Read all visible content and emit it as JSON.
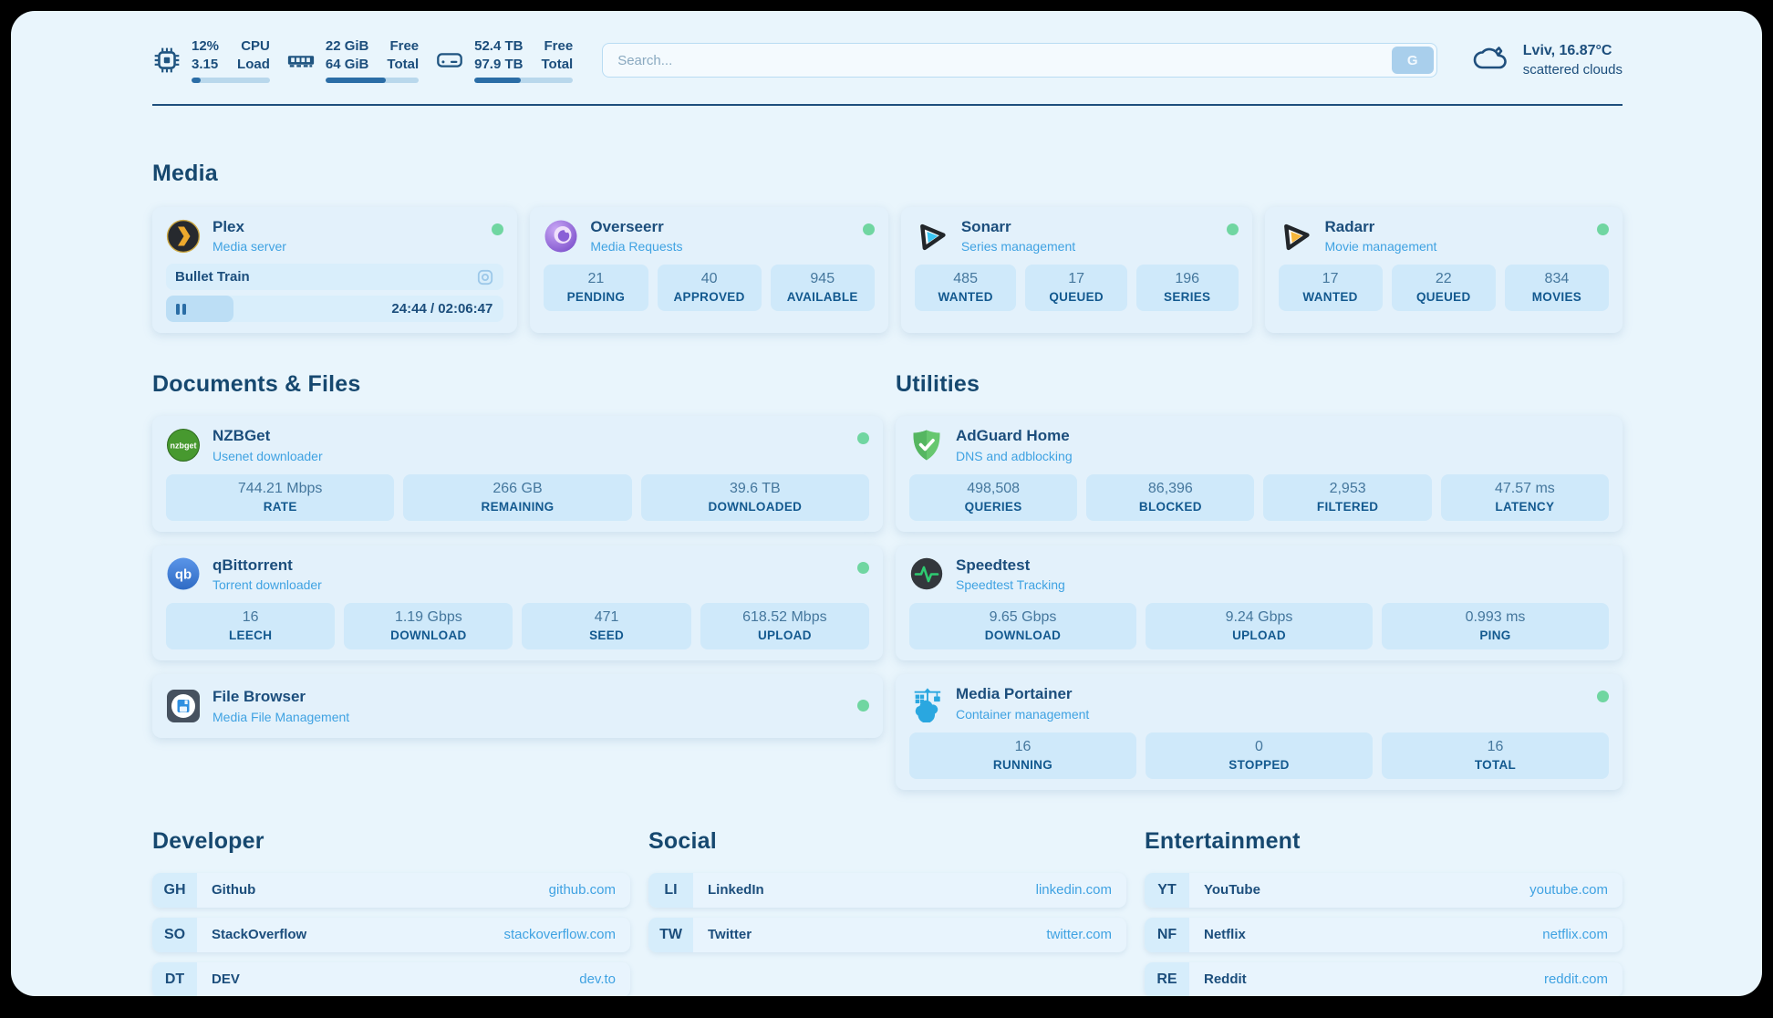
{
  "topbar": {
    "cpu": {
      "value_top": "12%",
      "value_bottom": "3.15",
      "label_top": "CPU",
      "label_bottom": "Load",
      "progress_pct": 12
    },
    "memory": {
      "value_top": "22 GiB",
      "value_bottom": "64 GiB",
      "label_top": "Free",
      "label_bottom": "Total",
      "progress_pct": 65
    },
    "disk": {
      "value_top": "52.4 TB",
      "value_bottom": "97.9 TB",
      "label_top": "Free",
      "label_bottom": "Total",
      "progress_pct": 47
    },
    "search": {
      "placeholder": "Search...",
      "button_label": "G"
    },
    "weather": {
      "location": "Lviv, 16.87°C",
      "condition": "scattered clouds"
    }
  },
  "sections": {
    "media": {
      "title": "Media"
    },
    "documents": {
      "title": "Documents & Files"
    },
    "utilities": {
      "title": "Utilities"
    },
    "developer": {
      "title": "Developer"
    },
    "social": {
      "title": "Social"
    },
    "entertainment": {
      "title": "Entertainment"
    }
  },
  "apps": {
    "plex": {
      "name": "Plex",
      "desc": "Media server",
      "status": "online",
      "now_playing": {
        "title": "Bullet Train",
        "time": "24:44 / 02:06:47",
        "progress_pct": 20
      }
    },
    "overseerr": {
      "name": "Overseerr",
      "desc": "Media Requests",
      "status": "online",
      "stats": [
        {
          "value": "21",
          "label": "PENDING"
        },
        {
          "value": "40",
          "label": "APPROVED"
        },
        {
          "value": "945",
          "label": "AVAILABLE"
        }
      ]
    },
    "sonarr": {
      "name": "Sonarr",
      "desc": "Series management",
      "status": "online",
      "stats": [
        {
          "value": "485",
          "label": "WANTED"
        },
        {
          "value": "17",
          "label": "QUEUED"
        },
        {
          "value": "196",
          "label": "SERIES"
        }
      ]
    },
    "radarr": {
      "name": "Radarr",
      "desc": "Movie management",
      "status": "online",
      "stats": [
        {
          "value": "17",
          "label": "WANTED"
        },
        {
          "value": "22",
          "label": "QUEUED"
        },
        {
          "value": "834",
          "label": "MOVIES"
        }
      ]
    },
    "nzbget": {
      "name": "NZBGet",
      "desc": "Usenet downloader",
      "status": "online",
      "stats": [
        {
          "value": "744.21 Mbps",
          "label": "RATE"
        },
        {
          "value": "266 GB",
          "label": "REMAINING"
        },
        {
          "value": "39.6 TB",
          "label": "DOWNLOADED"
        }
      ]
    },
    "qbittorrent": {
      "name": "qBittorrent",
      "desc": "Torrent downloader",
      "status": "online",
      "stats": [
        {
          "value": "16",
          "label": "LEECH"
        },
        {
          "value": "1.19 Gbps",
          "label": "DOWNLOAD"
        },
        {
          "value": "471",
          "label": "SEED"
        },
        {
          "value": "618.52 Mbps",
          "label": "UPLOAD"
        }
      ]
    },
    "filebrowser": {
      "name": "File Browser",
      "desc": "Media File Management",
      "status": "online"
    },
    "adguard": {
      "name": "AdGuard Home",
      "desc": "DNS and adblocking",
      "stats": [
        {
          "value": "498,508",
          "label": "QUERIES"
        },
        {
          "value": "86,396",
          "label": "BLOCKED"
        },
        {
          "value": "2,953",
          "label": "FILTERED"
        },
        {
          "value": "47.57 ms",
          "label": "LATENCY"
        }
      ]
    },
    "speedtest": {
      "name": "Speedtest",
      "desc": "Speedtest Tracking",
      "stats": [
        {
          "value": "9.65 Gbps",
          "label": "DOWNLOAD"
        },
        {
          "value": "9.24 Gbps",
          "label": "UPLOAD"
        },
        {
          "value": "0.993 ms",
          "label": "PING"
        }
      ]
    },
    "portainer": {
      "name": "Media Portainer",
      "desc": "Container management",
      "status": "online",
      "stats": [
        {
          "value": "16",
          "label": "RUNNING"
        },
        {
          "value": "0",
          "label": "STOPPED"
        },
        {
          "value": "16",
          "label": "TOTAL"
        }
      ]
    }
  },
  "bookmarks": {
    "developer": [
      {
        "abbr": "GH",
        "name": "Github",
        "url": "github.com"
      },
      {
        "abbr": "SO",
        "name": "StackOverflow",
        "url": "stackoverflow.com"
      },
      {
        "abbr": "DT",
        "name": "DEV",
        "url": "dev.to"
      }
    ],
    "social": [
      {
        "abbr": "LI",
        "name": "LinkedIn",
        "url": "linkedin.com"
      },
      {
        "abbr": "TW",
        "name": "Twitter",
        "url": "twitter.com"
      }
    ],
    "entertainment": [
      {
        "abbr": "YT",
        "name": "YouTube",
        "url": "youtube.com"
      },
      {
        "abbr": "NF",
        "name": "Netflix",
        "url": "netflix.com"
      },
      {
        "abbr": "RE",
        "name": "Reddit",
        "url": "reddit.com"
      }
    ]
  },
  "colors": {
    "page_bg": "#e9f5fc",
    "card_bg": "#e3f1fb",
    "tile_bg": "#cfe9fa",
    "navy_text": "#1c4e7c",
    "accent_blue": "#3fa2e2",
    "status_green": "#70d6a1"
  }
}
